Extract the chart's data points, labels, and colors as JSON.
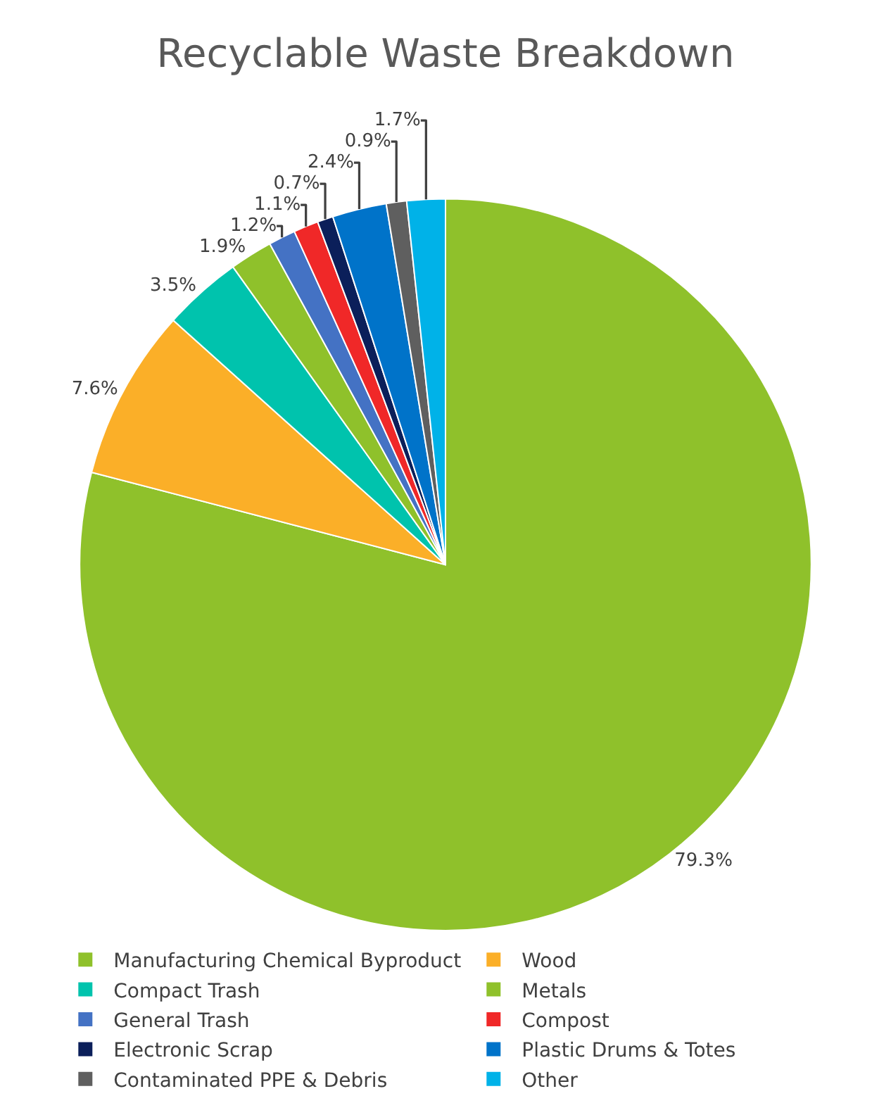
{
  "chart_data": {
    "type": "pie",
    "title": "Recyclable Waste Breakdown",
    "categories": [
      "Manufacturing Chemical Byproduct",
      "Wood",
      "Compact Trash",
      "Metals",
      "General Trash",
      "Compost",
      "Electronic Scrap",
      "Plastic Drums & Totes",
      "Contaminated PPE & Debris",
      "Other"
    ],
    "values": [
      79.3,
      7.6,
      3.5,
      1.9,
      1.2,
      1.1,
      0.7,
      2.4,
      0.9,
      1.7
    ],
    "value_labels": [
      "79.3%",
      "7.6%",
      "3.5%",
      "1.9%",
      "1.2%",
      "1.1%",
      "0.7%",
      "2.4%",
      "0.9%",
      "1.7%"
    ],
    "colors": [
      "#8fc12b",
      "#fbaf28",
      "#00c3ad",
      "#8fc12b",
      "#4472c4",
      "#f02828",
      "#0b1f5a",
      "#0073c9",
      "#5f5f5f",
      "#00b2e8"
    ],
    "legend": "bottom"
  }
}
